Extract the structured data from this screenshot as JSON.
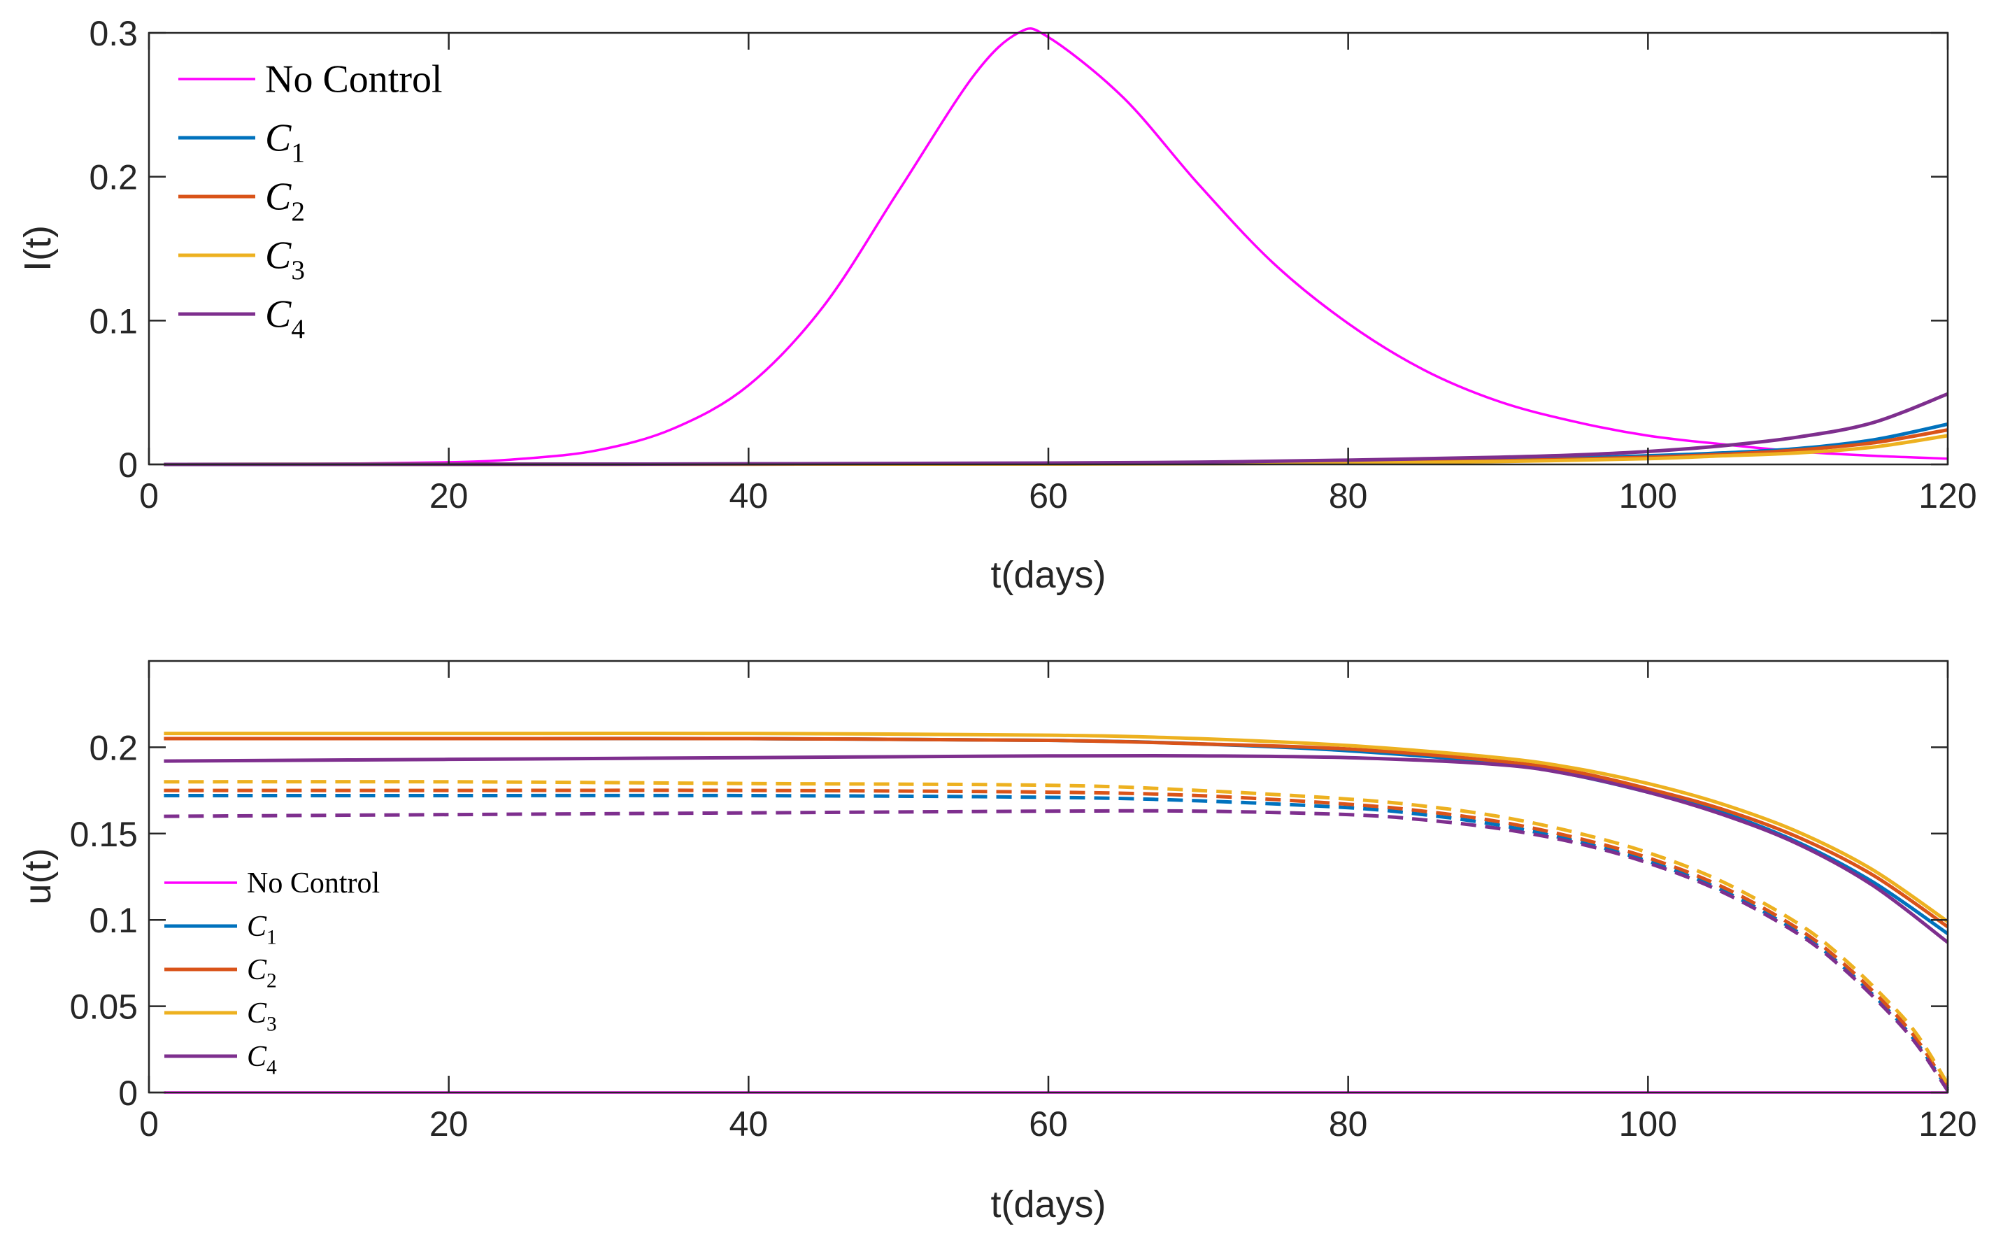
{
  "chart_data": [
    {
      "type": "line",
      "xlabel": "t(days)",
      "ylabel": "I(t)",
      "xlim": [
        0,
        120
      ],
      "ylim": [
        0,
        0.3
      ],
      "xticks": [
        0,
        20,
        40,
        60,
        80,
        100,
        120
      ],
      "yticks": [
        0,
        0.1,
        0.2,
        0.3
      ],
      "grid": false,
      "legend": {
        "placement": "top-left",
        "entries": [
          {
            "text": "No Control",
            "base": "No Control",
            "sub": ""
          },
          {
            "text": "C1",
            "base": "C",
            "sub": "1"
          },
          {
            "text": "C2",
            "base": "C",
            "sub": "2"
          },
          {
            "text": "C3",
            "base": "C",
            "sub": "3"
          },
          {
            "text": "C4",
            "base": "C",
            "sub": "4"
          }
        ]
      },
      "series": [
        {
          "name": "No Control",
          "color": "#FF00FF",
          "style": "solid",
          "x": [
            1,
            10,
            20,
            25,
            30,
            35,
            40,
            45,
            50,
            55,
            58,
            60,
            65,
            70,
            75,
            80,
            85,
            90,
            95,
            100,
            105,
            110,
            115,
            120
          ],
          "y": [
            0.0001,
            0.0003,
            0.0015,
            0.004,
            0.01,
            0.025,
            0.055,
            0.11,
            0.19,
            0.27,
            0.3,
            0.297,
            0.255,
            0.195,
            0.14,
            0.098,
            0.066,
            0.044,
            0.03,
            0.02,
            0.014,
            0.009,
            0.006,
            0.004
          ]
        },
        {
          "name": "C1",
          "color": "#0072BD",
          "style": "solid",
          "x": [
            1,
            20,
            40,
            60,
            70,
            80,
            90,
            100,
            105,
            110,
            115,
            120
          ],
          "y": [
            0,
            0.0001,
            0.0003,
            0.0006,
            0.0009,
            0.0015,
            0.003,
            0.006,
            0.008,
            0.011,
            0.017,
            0.028
          ]
        },
        {
          "name": "C2",
          "color": "#D95319",
          "style": "solid",
          "x": [
            1,
            20,
            40,
            60,
            70,
            80,
            90,
            100,
            105,
            110,
            115,
            120
          ],
          "y": [
            0,
            0.0001,
            0.0002,
            0.0004,
            0.0007,
            0.0012,
            0.0025,
            0.005,
            0.007,
            0.01,
            0.015,
            0.024
          ]
        },
        {
          "name": "C3",
          "color": "#EDB120",
          "style": "solid",
          "x": [
            1,
            20,
            40,
            60,
            70,
            80,
            90,
            100,
            105,
            110,
            115,
            120
          ],
          "y": [
            0,
            0.0001,
            0.0002,
            0.0003,
            0.0005,
            0.001,
            0.002,
            0.004,
            0.006,
            0.008,
            0.012,
            0.02
          ]
        },
        {
          "name": "C4",
          "color": "#7E2F8E",
          "style": "solid",
          "x": [
            1,
            20,
            40,
            60,
            70,
            80,
            90,
            95,
            100,
            105,
            110,
            115,
            120
          ],
          "y": [
            0,
            0.0001,
            0.0004,
            0.001,
            0.0016,
            0.003,
            0.005,
            0.0065,
            0.009,
            0.013,
            0.019,
            0.029,
            0.049
          ]
        }
      ]
    },
    {
      "type": "line",
      "xlabel": "t(days)",
      "ylabel": "u(t)",
      "xlim": [
        0,
        120
      ],
      "ylim": [
        0,
        0.25
      ],
      "xticks": [
        0,
        20,
        40,
        60,
        80,
        100,
        120
      ],
      "yticks": [
        0,
        0.05,
        0.1,
        0.15,
        0.2
      ],
      "grid": false,
      "legend": {
        "placement": "bottom-left",
        "entries": [
          {
            "text": "No Control",
            "base": "No Control",
            "sub": ""
          },
          {
            "text": "C1",
            "base": "C",
            "sub": "1"
          },
          {
            "text": "C2",
            "base": "C",
            "sub": "2"
          },
          {
            "text": "C3",
            "base": "C",
            "sub": "3"
          },
          {
            "text": "C4",
            "base": "C",
            "sub": "4"
          }
        ]
      },
      "series": [
        {
          "name": "No Control",
          "color": "#FF00FF",
          "style": "solid",
          "x": [
            1,
            120
          ],
          "y": [
            0,
            0
          ]
        },
        {
          "name": "C1",
          "color": "#0072BD",
          "style": "solid",
          "x": [
            1,
            20,
            40,
            60,
            70,
            80,
            90,
            95,
            100,
            105,
            110,
            115,
            120
          ],
          "y": [
            0.205,
            0.205,
            0.205,
            0.204,
            0.202,
            0.198,
            0.191,
            0.184,
            0.174,
            0.162,
            0.145,
            0.122,
            0.092
          ]
        },
        {
          "name": "C2",
          "color": "#D95319",
          "style": "solid",
          "x": [
            1,
            20,
            40,
            60,
            70,
            80,
            90,
            95,
            100,
            105,
            110,
            115,
            120
          ],
          "y": [
            0.205,
            0.205,
            0.205,
            0.204,
            0.202,
            0.199,
            0.192,
            0.186,
            0.176,
            0.164,
            0.148,
            0.126,
            0.096
          ]
        },
        {
          "name": "C3",
          "color": "#EDB120",
          "style": "solid",
          "x": [
            1,
            20,
            40,
            60,
            70,
            80,
            90,
            95,
            100,
            105,
            110,
            115,
            120
          ],
          "y": [
            0.208,
            0.208,
            0.208,
            0.207,
            0.205,
            0.201,
            0.194,
            0.188,
            0.179,
            0.167,
            0.151,
            0.129,
            0.099
          ]
        },
        {
          "name": "C4",
          "color": "#7E2F8E",
          "style": "solid",
          "x": [
            1,
            20,
            40,
            60,
            70,
            80,
            90,
            95,
            100,
            105,
            110,
            115,
            120
          ],
          "y": [
            0.192,
            0.193,
            0.194,
            0.195,
            0.195,
            0.194,
            0.19,
            0.184,
            0.174,
            0.161,
            0.144,
            0.12,
            0.087
          ]
        },
        {
          "name": "C1",
          "color": "#0072BD",
          "style": "dashed",
          "x": [
            1,
            20,
            40,
            60,
            70,
            80,
            85,
            90,
            95,
            100,
            105,
            110,
            113,
            116,
            118,
            120
          ],
          "y": [
            0.172,
            0.172,
            0.172,
            0.171,
            0.169,
            0.165,
            0.161,
            0.155,
            0.146,
            0.134,
            0.117,
            0.093,
            0.073,
            0.048,
            0.028,
            0.002
          ]
        },
        {
          "name": "C2",
          "color": "#D95319",
          "style": "dashed",
          "x": [
            1,
            20,
            40,
            60,
            70,
            80,
            85,
            90,
            95,
            100,
            105,
            110,
            113,
            116,
            118,
            120
          ],
          "y": [
            0.175,
            0.175,
            0.175,
            0.174,
            0.172,
            0.167,
            0.163,
            0.157,
            0.148,
            0.136,
            0.119,
            0.095,
            0.075,
            0.05,
            0.03,
            0.003
          ]
        },
        {
          "name": "C3",
          "color": "#EDB120",
          "style": "dashed",
          "x": [
            1,
            20,
            40,
            60,
            70,
            80,
            85,
            90,
            95,
            100,
            105,
            110,
            113,
            116,
            118,
            120
          ],
          "y": [
            0.18,
            0.18,
            0.179,
            0.178,
            0.175,
            0.17,
            0.166,
            0.16,
            0.151,
            0.139,
            0.122,
            0.098,
            0.078,
            0.053,
            0.033,
            0.005
          ]
        },
        {
          "name": "C4",
          "color": "#7E2F8E",
          "style": "dashed",
          "x": [
            1,
            20,
            40,
            60,
            70,
            80,
            85,
            90,
            95,
            100,
            105,
            110,
            113,
            116,
            118,
            120
          ],
          "y": [
            0.16,
            0.161,
            0.162,
            0.163,
            0.163,
            0.161,
            0.158,
            0.153,
            0.145,
            0.133,
            0.116,
            0.092,
            0.072,
            0.047,
            0.027,
            0.001
          ]
        }
      ]
    }
  ]
}
